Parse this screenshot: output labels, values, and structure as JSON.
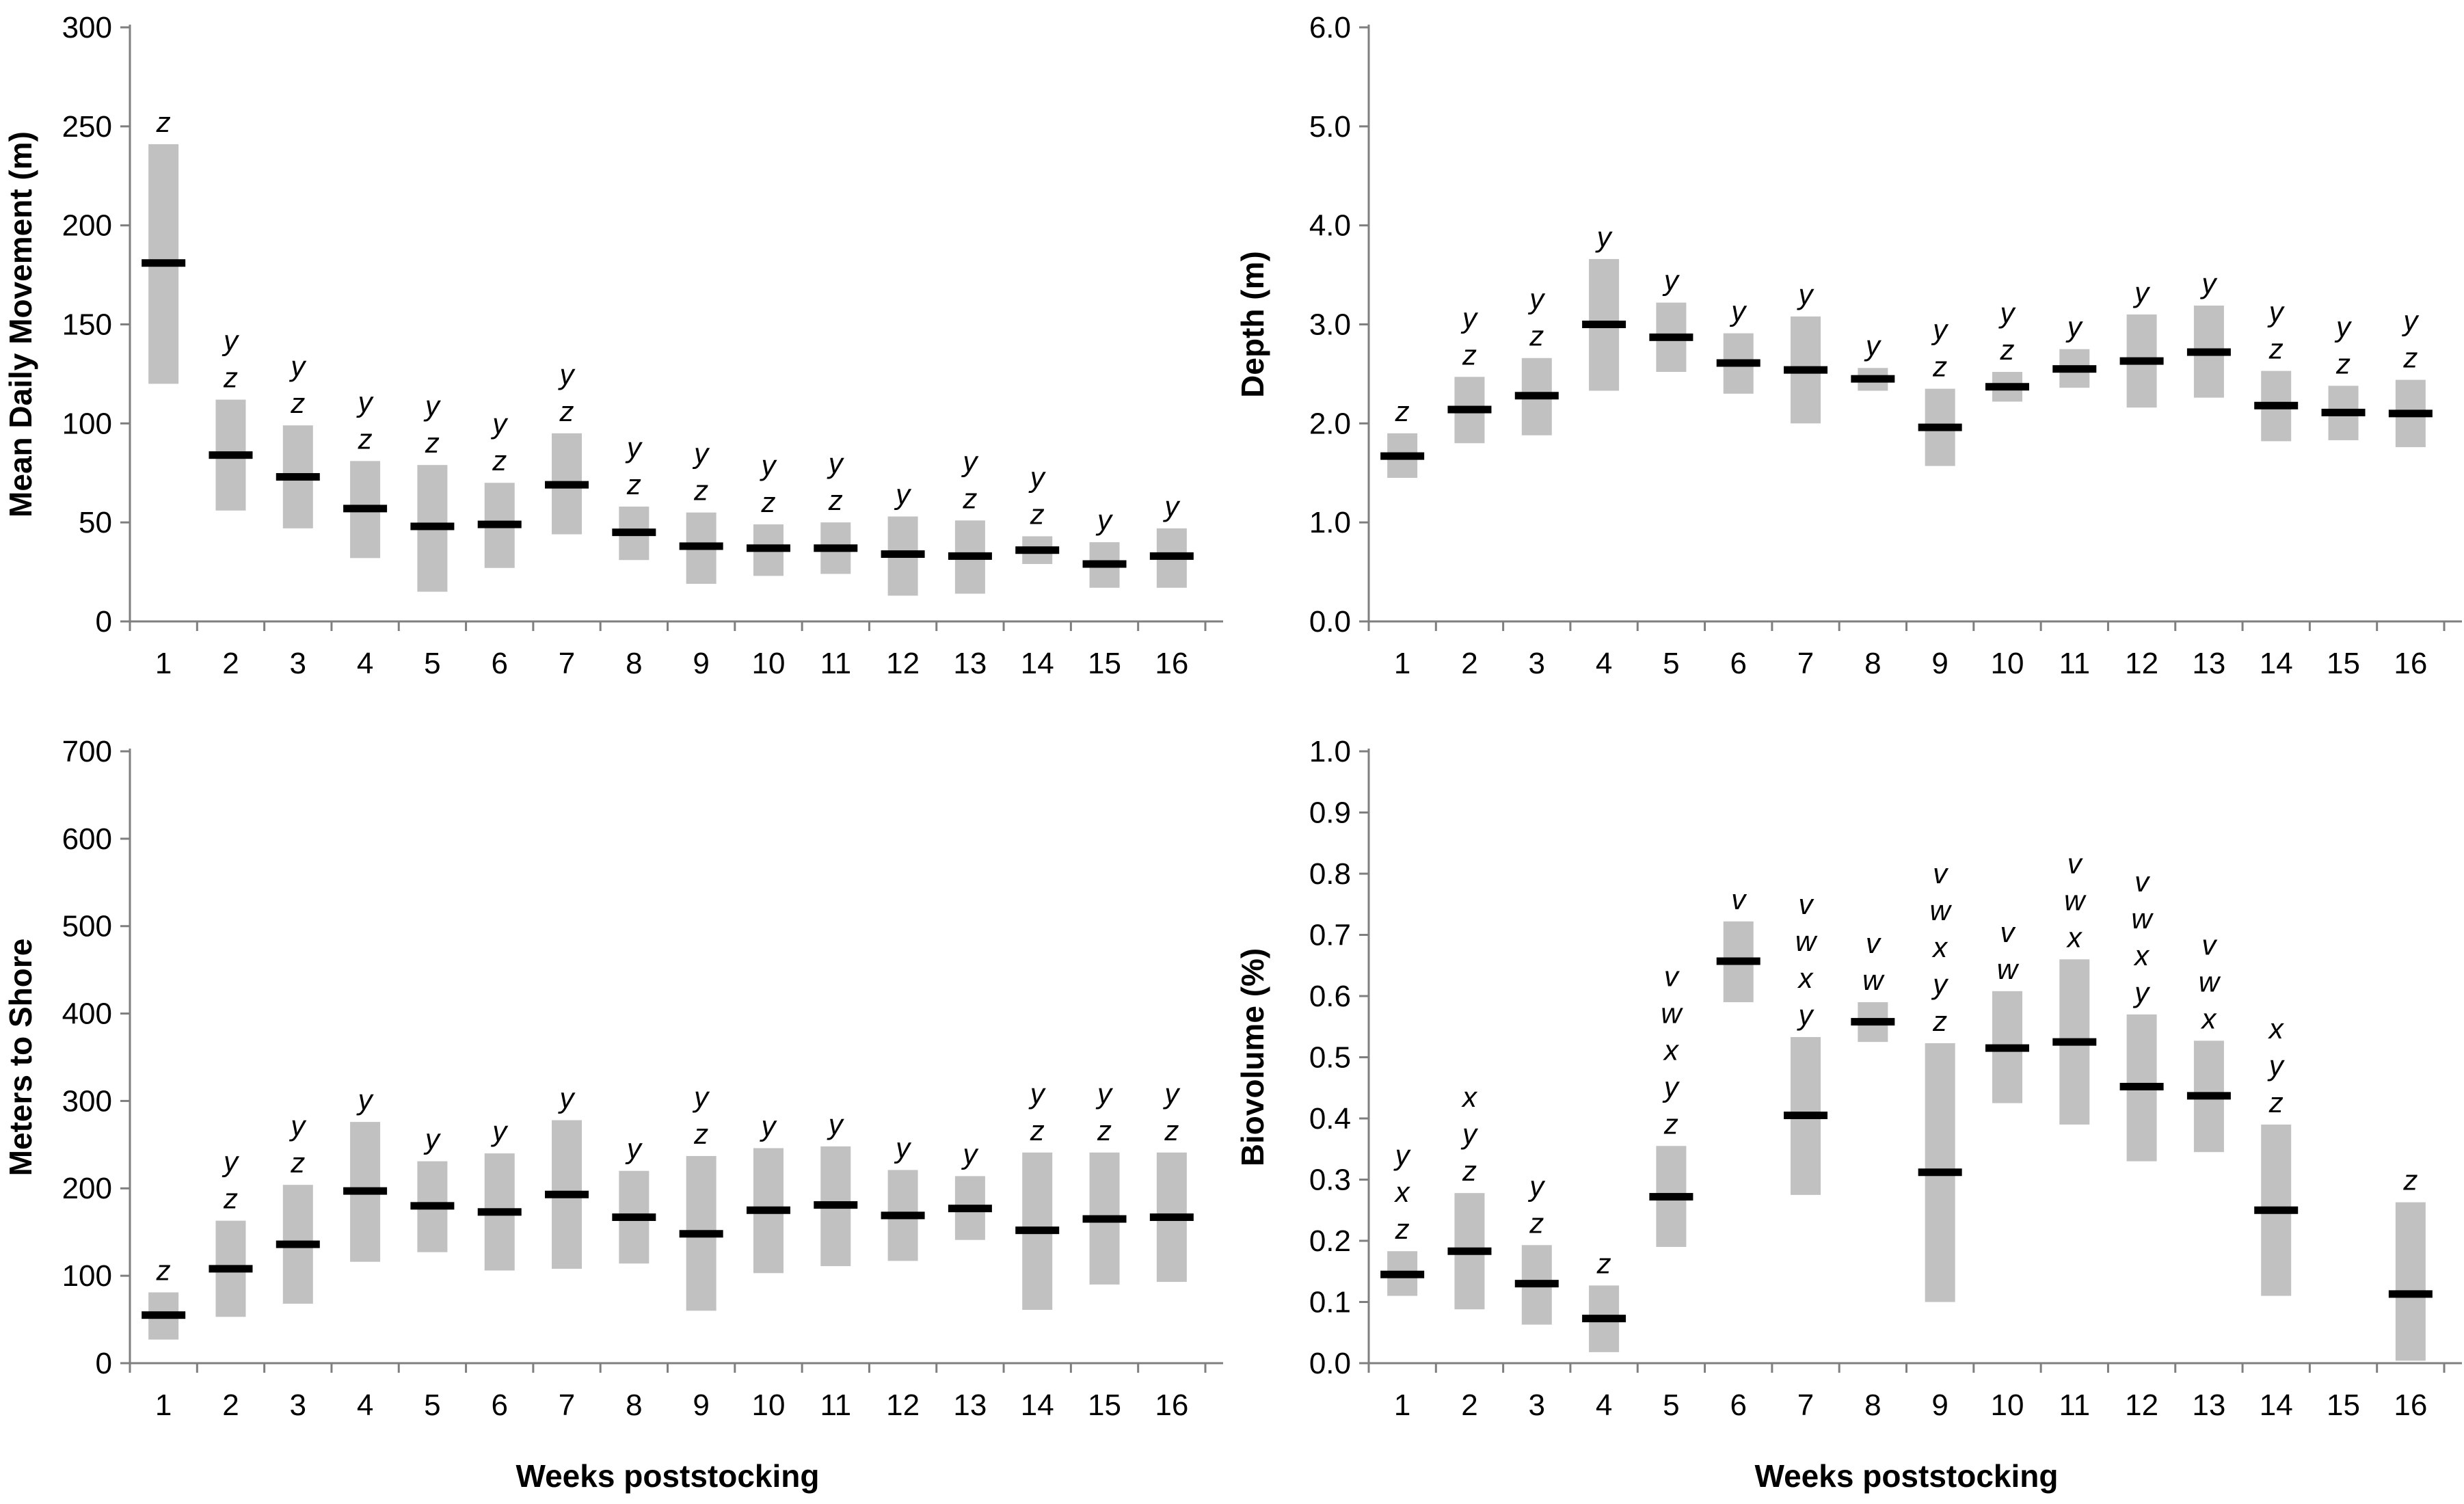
{
  "figure": {
    "description": "Four-panel weekly summary chart: gray bars show value ranges, black markers show means, italic letters denote significance groups",
    "shared_xlabel": "Weeks poststocking"
  },
  "colors": {
    "bar": "#c1c1c1",
    "mean_marker": "#000000",
    "axis": "#7f7f7f",
    "text": "#000000",
    "background": "#ffffff"
  },
  "chart_data": [
    {
      "type": "bar",
      "subtype": "floating-range-with-mean",
      "panel": "mean-daily-movement",
      "title": "",
      "xlabel": "",
      "ylabel": "Mean Daily Movement (m)",
      "ylim": [
        0,
        300
      ],
      "ytick_labels": [
        "0",
        "50",
        "100",
        "150",
        "200",
        "250",
        "300"
      ],
      "ytick_values": [
        0,
        50,
        100,
        150,
        200,
        250,
        300
      ],
      "grid": false,
      "categories": [
        "1",
        "2",
        "3",
        "4",
        "5",
        "6",
        "7",
        "8",
        "9",
        "10",
        "11",
        "12",
        "13",
        "14",
        "15",
        "16"
      ],
      "series": [
        {
          "name": "range_low",
          "values": [
            120,
            56,
            47,
            32,
            15,
            27,
            44,
            31,
            19,
            23,
            24,
            13,
            14,
            29,
            17,
            17
          ]
        },
        {
          "name": "range_high",
          "values": [
            241,
            112,
            99,
            81,
            79,
            70,
            95,
            58,
            55,
            49,
            50,
            53,
            51,
            43,
            40,
            47
          ]
        },
        {
          "name": "mean",
          "values": [
            181,
            84,
            73,
            57,
            48,
            49,
            69,
            45,
            38,
            37,
            37,
            34,
            33,
            36,
            29,
            33
          ]
        }
      ],
      "sig_letters": [
        [
          "z"
        ],
        [
          "y",
          "z"
        ],
        [
          "y",
          "z"
        ],
        [
          "y",
          "z"
        ],
        [
          "y",
          "z"
        ],
        [
          "y",
          "z"
        ],
        [
          "y",
          "z"
        ],
        [
          "y",
          "z"
        ],
        [
          "y",
          "z"
        ],
        [
          "y",
          "z"
        ],
        [
          "y",
          "z"
        ],
        [
          "y"
        ],
        [
          "y",
          "z"
        ],
        [
          "y",
          "z"
        ],
        [
          "y"
        ],
        [
          "y"
        ]
      ]
    },
    {
      "type": "bar",
      "subtype": "floating-range-with-mean",
      "panel": "depth",
      "title": "",
      "xlabel": "",
      "ylabel": "Depth (m)",
      "ylim": [
        0,
        6
      ],
      "ytick_labels": [
        "0.0",
        "1.0",
        "2.0",
        "3.0",
        "4.0",
        "5.0",
        "6.0"
      ],
      "ytick_values": [
        0,
        1,
        2,
        3,
        4,
        5,
        6
      ],
      "grid": false,
      "categories": [
        "1",
        "2",
        "3",
        "4",
        "5",
        "6",
        "7",
        "8",
        "9",
        "10",
        "11",
        "12",
        "13",
        "14",
        "15",
        "16"
      ],
      "series": [
        {
          "name": "range_low",
          "values": [
            1.45,
            1.8,
            1.88,
            2.33,
            2.52,
            2.3,
            2.0,
            2.33,
            1.57,
            2.22,
            2.36,
            2.16,
            2.26,
            1.82,
            1.83,
            1.76
          ]
        },
        {
          "name": "range_high",
          "values": [
            1.9,
            2.47,
            2.66,
            3.66,
            3.22,
            2.91,
            3.08,
            2.56,
            2.35,
            2.52,
            2.75,
            3.1,
            3.19,
            2.53,
            2.38,
            2.44
          ]
        },
        {
          "name": "mean",
          "values": [
            1.67,
            2.14,
            2.28,
            3.0,
            2.87,
            2.61,
            2.54,
            2.45,
            1.96,
            2.37,
            2.55,
            2.63,
            2.72,
            2.18,
            2.11,
            2.1
          ]
        }
      ],
      "sig_letters": [
        [
          "z"
        ],
        [
          "y",
          "z"
        ],
        [
          "y",
          "z"
        ],
        [
          "y"
        ],
        [
          "y"
        ],
        [
          "y"
        ],
        [
          "y"
        ],
        [
          "y"
        ],
        [
          "y",
          "z"
        ],
        [
          "y",
          "z"
        ],
        [
          "y"
        ],
        [
          "y"
        ],
        [
          "y"
        ],
        [
          "y",
          "z"
        ],
        [
          "y",
          "z"
        ],
        [
          "y",
          "z"
        ]
      ]
    },
    {
      "type": "bar",
      "subtype": "floating-range-with-mean",
      "panel": "meters-to-shore",
      "title": "",
      "xlabel": "Weeks poststocking",
      "ylabel": "Meters to Shore",
      "ylim": [
        0,
        700
      ],
      "ytick_labels": [
        "0",
        "100",
        "200",
        "300",
        "400",
        "500",
        "600",
        "700"
      ],
      "ytick_values": [
        0,
        100,
        200,
        300,
        400,
        500,
        600,
        700
      ],
      "grid": false,
      "categories": [
        "1",
        "2",
        "3",
        "4",
        "5",
        "6",
        "7",
        "8",
        "9",
        "10",
        "11",
        "12",
        "13",
        "14",
        "15",
        "16"
      ],
      "series": [
        {
          "name": "range_low",
          "values": [
            27,
            53,
            68,
            116,
            127,
            106,
            108,
            114,
            60,
            103,
            111,
            117,
            141,
            61,
            90,
            93
          ]
        },
        {
          "name": "range_high",
          "values": [
            81,
            163,
            204,
            276,
            231,
            240,
            278,
            220,
            237,
            246,
            248,
            221,
            214,
            241,
            241,
            241
          ]
        },
        {
          "name": "mean",
          "values": [
            55,
            108,
            136,
            197,
            180,
            173,
            193,
            167,
            148,
            175,
            181,
            169,
            177,
            152,
            165,
            167
          ]
        }
      ],
      "sig_letters": [
        [
          "z"
        ],
        [
          "y",
          "z"
        ],
        [
          "y",
          "z"
        ],
        [
          "y"
        ],
        [
          "y"
        ],
        [
          "y"
        ],
        [
          "y"
        ],
        [
          "y"
        ],
        [
          "y",
          "z"
        ],
        [
          "y"
        ],
        [
          "y"
        ],
        [
          "y"
        ],
        [
          "y"
        ],
        [
          "y",
          "z"
        ],
        [
          "y",
          "z"
        ],
        [
          "y",
          "z"
        ]
      ]
    },
    {
      "type": "bar",
      "subtype": "floating-range-with-mean",
      "panel": "biovolume",
      "title": "",
      "xlabel": "Weeks poststocking",
      "ylabel": "Biovolume (%)",
      "ylim": [
        0,
        1
      ],
      "ytick_labels": [
        "0.0",
        "0.1",
        "0.2",
        "0.3",
        "0.4",
        "0.5",
        "0.6",
        "0.7",
        "0.8",
        "0.9",
        "1.0"
      ],
      "ytick_values": [
        0,
        0.1,
        0.2,
        0.3,
        0.4,
        0.5,
        0.6,
        0.7,
        0.8,
        0.9,
        1.0
      ],
      "grid": false,
      "categories": [
        "1",
        "2",
        "3",
        "4",
        "5",
        "6",
        "7",
        "8",
        "9",
        "10",
        "11",
        "12",
        "13",
        "14",
        "15",
        "16"
      ],
      "series": [
        {
          "name": "range_low",
          "values": [
            0.11,
            0.088,
            0.063,
            0.018,
            0.19,
            0.59,
            0.275,
            0.525,
            0.1,
            0.425,
            0.39,
            0.33,
            0.345,
            0.11,
            null,
            0.004
          ]
        },
        {
          "name": "range_high",
          "values": [
            0.183,
            0.278,
            0.193,
            0.127,
            0.355,
            0.722,
            0.533,
            0.59,
            0.523,
            0.608,
            0.66,
            0.57,
            0.527,
            0.39,
            null,
            0.263
          ]
        },
        {
          "name": "mean",
          "values": [
            0.145,
            0.183,
            0.13,
            0.073,
            0.272,
            0.657,
            0.405,
            0.558,
            0.312,
            0.515,
            0.525,
            0.452,
            0.437,
            0.25,
            null,
            0.113
          ]
        }
      ],
      "sig_letters": [
        [
          "y",
          "x",
          "z"
        ],
        [
          "x",
          "y",
          "z"
        ],
        [
          "y",
          "z"
        ],
        [
          "z"
        ],
        [
          "v",
          "w",
          "x",
          "y",
          "z"
        ],
        [
          "v"
        ],
        [
          "v",
          "w",
          "x",
          "y"
        ],
        [
          "v",
          "w"
        ],
        [
          "v",
          "w",
          "x",
          "y",
          "z"
        ],
        [
          "v",
          "w"
        ],
        [
          "v",
          "w",
          "x"
        ],
        [
          "v",
          "w",
          "x",
          "y"
        ],
        [
          "v",
          "w",
          "x"
        ],
        [
          "x",
          "y",
          "z"
        ],
        [],
        [
          "z"
        ]
      ]
    }
  ]
}
